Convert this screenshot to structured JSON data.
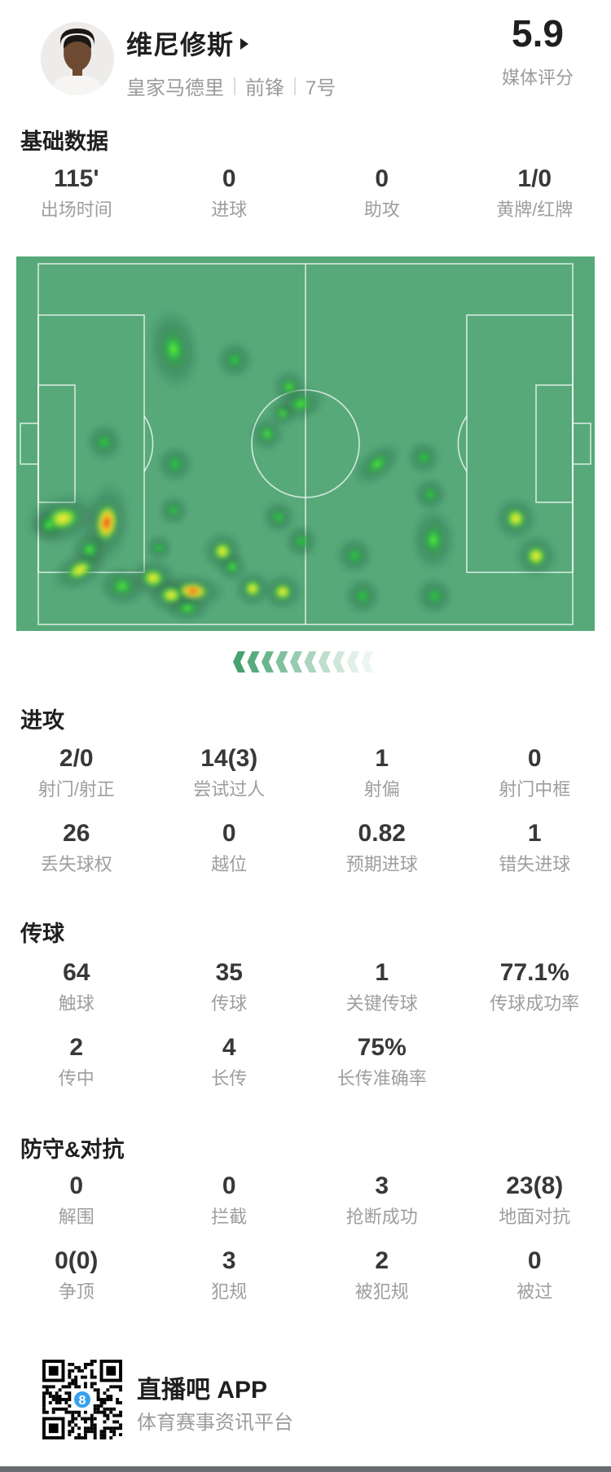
{
  "header": {
    "player_name": "维尼修斯",
    "team": "皇家马德里",
    "position": "前锋",
    "shirt_number": "7号",
    "rating": "5.9",
    "rating_label": "媒体评分"
  },
  "sections": {
    "basic": {
      "title": "基础数据",
      "stats": [
        {
          "value": "115'",
          "label": "出场时间"
        },
        {
          "value": "0",
          "label": "进球"
        },
        {
          "value": "0",
          "label": "助攻"
        },
        {
          "value": "1/0",
          "label": "黄牌/红牌"
        }
      ]
    },
    "attack": {
      "title": "进攻",
      "stats": [
        {
          "value": "2/0",
          "label": "射门/射正"
        },
        {
          "value": "14(3)",
          "label": "尝试过人"
        },
        {
          "value": "1",
          "label": "射偏"
        },
        {
          "value": "0",
          "label": "射门中框"
        },
        {
          "value": "26",
          "label": "丢失球权"
        },
        {
          "value": "0",
          "label": "越位"
        },
        {
          "value": "0.82",
          "label": "预期进球"
        },
        {
          "value": "1",
          "label": "错失进球"
        }
      ]
    },
    "passing": {
      "title": "传球",
      "stats": [
        {
          "value": "64",
          "label": "触球"
        },
        {
          "value": "35",
          "label": "传球"
        },
        {
          "value": "1",
          "label": "关键传球"
        },
        {
          "value": "77.1%",
          "label": "传球成功率"
        },
        {
          "value": "2",
          "label": "传中"
        },
        {
          "value": "4",
          "label": "长传"
        },
        {
          "value": "75%",
          "label": "长传准确率"
        }
      ]
    },
    "defense": {
      "title": "防守&对抗",
      "stats": [
        {
          "value": "0",
          "label": "解围"
        },
        {
          "value": "0",
          "label": "拦截"
        },
        {
          "value": "3",
          "label": "抢断成功"
        },
        {
          "value": "23(8)",
          "label": "地面对抗"
        },
        {
          "value": "0(0)",
          "label": "争顶"
        },
        {
          "value": "3",
          "label": "犯规"
        },
        {
          "value": "2",
          "label": "被犯规"
        },
        {
          "value": "0",
          "label": "被过"
        }
      ]
    }
  },
  "heatmap": {
    "pitch_color": "#57a97a",
    "line_color": "#ffffff",
    "blobs": [
      [
        193,
        114,
        15,
        "b",
        1,
        1.6,
        -8
      ],
      [
        268,
        127,
        11,
        "g",
        1,
        1,
        0
      ],
      [
        335,
        160,
        10,
        "b",
        1,
        1,
        0
      ],
      [
        349,
        181,
        11,
        "b",
        1.35,
        0.9,
        -15
      ],
      [
        327,
        193,
        8,
        "b",
        1,
        1,
        0
      ],
      [
        308,
        218,
        10,
        "b",
        1,
        1,
        0
      ],
      [
        108,
        228,
        11,
        "g",
        1,
        1,
        0
      ],
      [
        195,
        255,
        11,
        "g",
        1,
        1,
        0
      ],
      [
        193,
        312,
        9,
        "g",
        1,
        1,
        0
      ],
      [
        175,
        358,
        8,
        "g",
        1,
        1,
        0
      ],
      [
        322,
        320,
        10,
        "g",
        1,
        1,
        0
      ],
      [
        350,
        350,
        10,
        "g",
        1,
        1,
        0
      ],
      [
        415,
        367,
        11,
        "g",
        1,
        1,
        0
      ],
      [
        425,
        417,
        11,
        "g",
        1,
        1,
        0
      ],
      [
        513,
        417,
        11,
        "g",
        1,
        1,
        0
      ],
      [
        500,
        247,
        10,
        "g",
        1,
        1,
        0
      ],
      [
        508,
        292,
        10,
        "g",
        1,
        1,
        0
      ],
      [
        443,
        255,
        11,
        "b",
        1.5,
        0.85,
        -38
      ],
      [
        512,
        348,
        13,
        "b",
        1,
        1.45,
        0
      ],
      [
        613,
        322,
        13,
        "y",
        1,
        1,
        0
      ],
      [
        638,
        368,
        13,
        "y",
        1,
        1,
        0
      ],
      [
        57,
        322,
        15,
        "y",
        1.5,
        1,
        -12
      ],
      [
        40,
        330,
        10,
        "b",
        1,
        1,
        0
      ],
      [
        111,
        327,
        14,
        "r",
        1,
        1.75,
        6
      ],
      [
        90,
        360,
        11,
        "b",
        1,
        1,
        20
      ],
      [
        78,
        385,
        12,
        "y",
        1.5,
        0.9,
        -28
      ],
      [
        130,
        405,
        12,
        "b",
        1.2,
        1,
        10
      ],
      [
        168,
        395,
        12,
        "y",
        1.2,
        1,
        0
      ],
      [
        190,
        416,
        12,
        "y",
        1.2,
        0.9,
        0
      ],
      [
        217,
        411,
        13,
        "r",
        1.5,
        0.8,
        5
      ],
      [
        253,
        362,
        12,
        "y",
        1,
        1,
        0
      ],
      [
        265,
        381,
        9,
        "b",
        1,
        1,
        0
      ],
      [
        290,
        408,
        11,
        "y",
        1,
        1,
        0
      ],
      [
        327,
        412,
        11,
        "y",
        1.1,
        1,
        0
      ],
      [
        210,
        432,
        10,
        "b",
        1.4,
        0.8,
        0
      ]
    ]
  },
  "footer": {
    "app_name": "直播吧 APP",
    "app_slogan": "体育赛事资讯平台",
    "qr_center_glyph": "8",
    "qr_logo_color": "#38a1f0"
  }
}
